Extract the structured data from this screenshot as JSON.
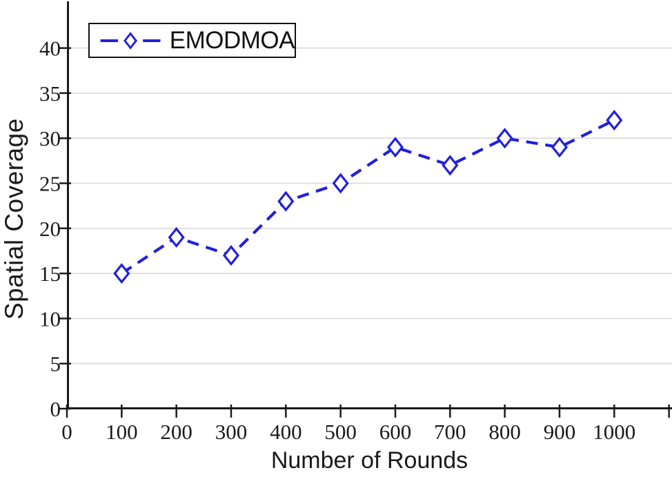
{
  "figure": {
    "background": "#ffffff"
  },
  "chart_data": {
    "type": "line",
    "title": "",
    "xlabel": "Number of Rounds",
    "ylabel": "Spatial Coverage",
    "x": [
      100,
      200,
      300,
      400,
      500,
      600,
      700,
      800,
      900,
      1000
    ],
    "series": [
      {
        "name": "EMODMOA",
        "values": [
          15,
          19,
          17,
          23,
          25,
          29,
          27,
          30,
          29,
          32
        ],
        "color": "#2020dd",
        "line_style": "dashed",
        "marker": "open-diamond"
      }
    ],
    "xlim": [
      0,
      1106
    ],
    "ylim": [
      0,
      45.3
    ],
    "xticks": [
      0,
      100,
      200,
      300,
      400,
      500,
      600,
      700,
      800,
      900,
      1000,
      1100
    ],
    "xtick_labels": [
      "0",
      "100",
      "200",
      "300",
      "400",
      "500",
      "600",
      "700",
      "800",
      "900",
      "1000",
      ""
    ],
    "yticks": [
      0,
      5,
      10,
      15,
      20,
      25,
      30,
      35,
      40
    ],
    "ytick_labels": [
      "0",
      "5",
      "10",
      "15",
      "20",
      "25",
      "30",
      "35",
      "40"
    ],
    "grid": "horizontal",
    "grid_color": "#d9d9d9",
    "axis_color": "#1a1a1a",
    "legend_position": "top-left",
    "legend_border_color": "#111111"
  }
}
